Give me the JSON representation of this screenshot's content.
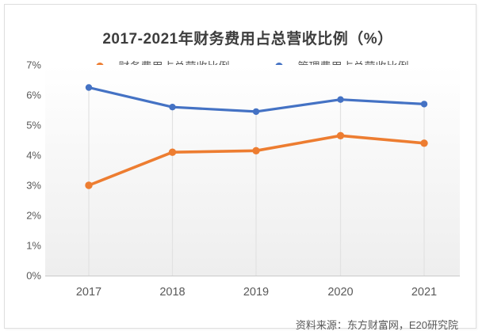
{
  "title": "2017-2021年财务费用占总营收比例（%）",
  "source": {
    "text": "资料来源：东方财富网，E20研究院"
  },
  "colors": {
    "financial_series": "#ED7D31",
    "admin_series": "#4472C4",
    "axis_line": "#c9c9c9",
    "drop_line": "#e2e2e2",
    "label_text": "#595959",
    "title_text": "#3d3d3d"
  },
  "chart_data": {
    "type": "line",
    "title": "2017-2021年财务费用占总营收比例（%）",
    "categories": [
      "2017",
      "2018",
      "2019",
      "2020",
      "2021"
    ],
    "series": [
      {
        "name": "财务费用占总营收比例",
        "color": "#ED7D31",
        "values": [
          3.0,
          4.1,
          4.15,
          4.65,
          4.4
        ]
      },
      {
        "name": "管理费用占总营收比例",
        "color": "#4472C4",
        "values": [
          6.25,
          5.6,
          5.45,
          5.85,
          5.7
        ]
      }
    ],
    "xlabel": "",
    "ylabel": "",
    "ylim": [
      0,
      7
    ],
    "ytick_step": 1,
    "ytick_labels": [
      "0%",
      "1%",
      "2%",
      "3%",
      "4%",
      "5%",
      "6%",
      "7%"
    ],
    "grid": "vertical drop lines from upper series points to x-axis",
    "plot_background": "vertical gradient white to light gray",
    "legend_position": "top",
    "marker": "circle",
    "source": "资料来源：东方财富网，E20研究院"
  }
}
